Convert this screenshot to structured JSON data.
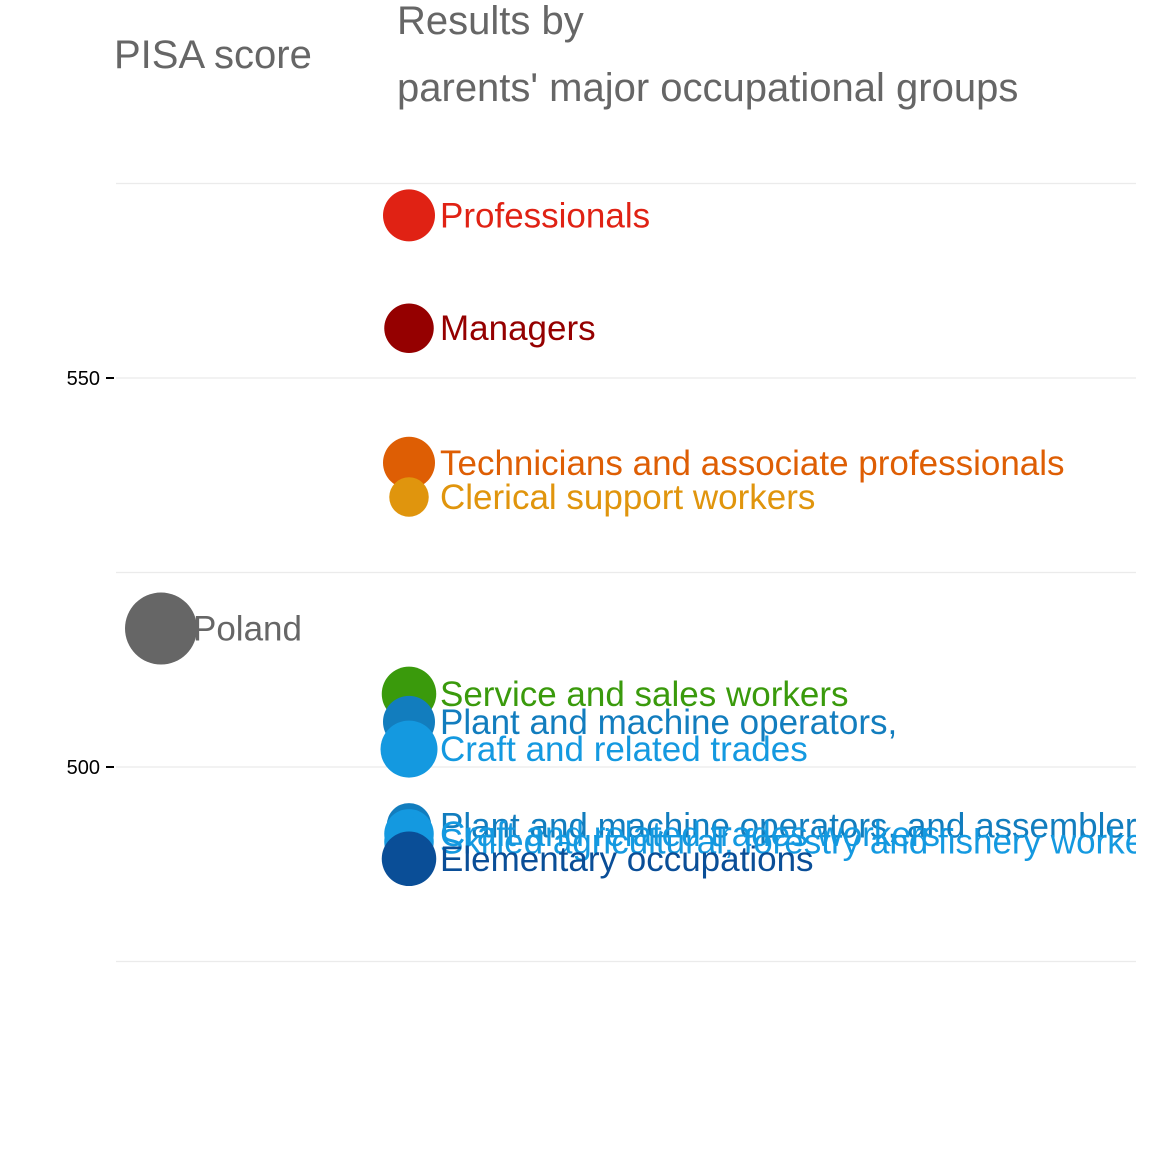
{
  "chart_data": {
    "type": "scatter",
    "ylabel": "PISA score",
    "title_lines": [
      "Results by",
      "parents' major occupational groups"
    ],
    "y_ticks": [
      500,
      550
    ],
    "y_gridlines": [
      475,
      500,
      525,
      550,
      575
    ],
    "ylim": [
      475,
      575
    ],
    "grid": true,
    "columns": [
      "overall",
      "groups"
    ],
    "points": [
      {
        "label": "Poland",
        "column": "overall",
        "y": 517.8,
        "size": 1.0,
        "color": "#666666"
      },
      {
        "label": "Professionals",
        "column": "groups",
        "y": 570.9,
        "size": 0.6,
        "color": "#E02214"
      },
      {
        "label": "Managers",
        "column": "groups",
        "y": 556.4,
        "size": 0.55,
        "color": "#950000"
      },
      {
        "label": "Technicians and associate professionals",
        "column": "groups",
        "y": 539.1,
        "size": 0.6,
        "color": "#DE5E04"
      },
      {
        "label": "Clerical support workers",
        "column": "groups",
        "y": 534.7,
        "size": 0.35,
        "color": "#E0950D"
      },
      {
        "label": "Service and sales workers",
        "column": "groups",
        "y": 509.4,
        "size": 0.65,
        "color": "#3A9A0C"
      },
      {
        "label": "Plant and machine operators,",
        "column": "groups",
        "y": 505.8,
        "size": 0.6,
        "color": "#127DBE"
      },
      {
        "label": "Craft and related trades",
        "column": "groups",
        "y": 502.3,
        "size": 0.7,
        "color": "#1499E0"
      },
      {
        "label": "Plant and machine operators, and assemblers",
        "column": "groups",
        "y": 492.5,
        "size": 0.45,
        "color": "#127DBE"
      },
      {
        "label": "Craft and related trades workers",
        "column": "groups",
        "y": 491.4,
        "size": 0.55,
        "color": "#1499E0"
      },
      {
        "label": "Skilled agricultural, forestry and fishery workers",
        "column": "groups",
        "y": 490.4,
        "size": 0.55,
        "color": "#1499E0"
      },
      {
        "label": "Elementary occupations",
        "column": "groups",
        "y": 488.2,
        "size": 0.65,
        "color": "#0A4E97"
      }
    ]
  }
}
